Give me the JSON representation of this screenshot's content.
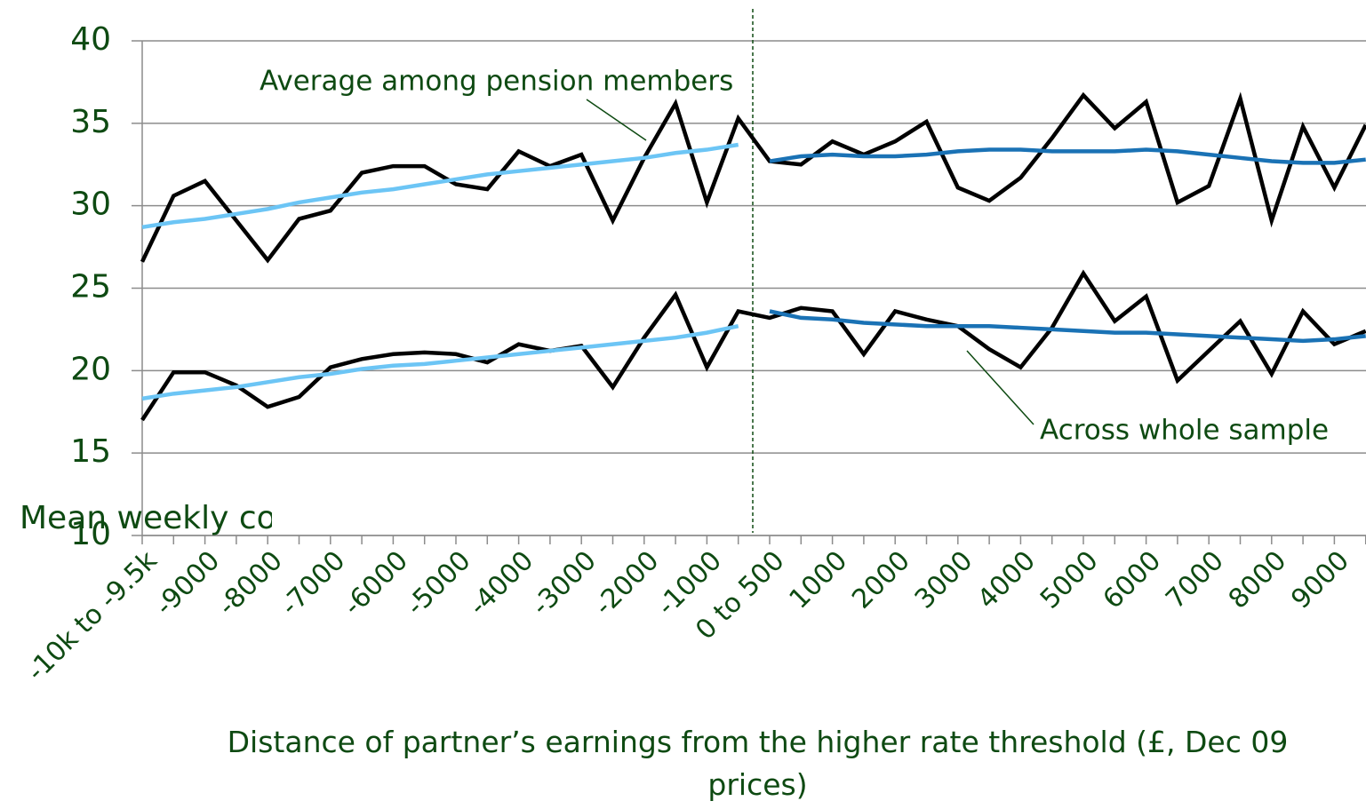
{
  "chart_data": {
    "type": "line",
    "y_label": "Mean weekly co",
    "x_label": "Distance of partner’s earnings from the higher rate threshold (£, Dec 09 prices)",
    "annotations": [
      "Average among pension members",
      "Across whole sample"
    ],
    "categories": [
      "-10k to -9.5k",
      null,
      "-9000",
      null,
      "-8000",
      null,
      "-7000",
      null,
      "-6000",
      null,
      "-5000",
      null,
      "-4000",
      null,
      "-3000",
      null,
      "-2000",
      null,
      "-1000",
      null,
      "0 to 500",
      null,
      "1000",
      null,
      "2000",
      null,
      "3000",
      null,
      "4000",
      null,
      "5000",
      null,
      "6000",
      null,
      "7000",
      null,
      "8000",
      null,
      "9000",
      null
    ],
    "series": [
      {
        "color": "#000000",
        "values": [
          26.6,
          30.6,
          31.5,
          29.1,
          26.7,
          29.2,
          29.7,
          32.0,
          32.4,
          32.4,
          31.3,
          31.0,
          33.3,
          32.4,
          33.1,
          29.1,
          32.9,
          36.2,
          30.2,
          35.3,
          32.7,
          32.5,
          33.9,
          33.1,
          33.9,
          35.1,
          31.1,
          30.3,
          31.7,
          34.1,
          36.7,
          34.7,
          36.3,
          30.2,
          31.2,
          36.5,
          29.1,
          34.8,
          31.1,
          34.9
        ]
      },
      {
        "color": "#6cc5f5",
        "values": [
          28.7,
          29.0,
          29.2,
          29.5,
          29.8,
          30.2,
          30.5,
          30.8,
          31.0,
          31.3,
          31.6,
          31.9,
          32.1,
          32.3,
          32.5,
          32.7,
          32.9,
          33.2,
          33.4,
          33.7,
          null,
          null,
          null,
          null,
          null,
          null,
          null,
          null,
          null,
          null,
          null,
          null,
          null,
          null,
          null,
          null,
          null,
          null,
          null,
          null
        ]
      },
      {
        "color": "#1a72b5",
        "values": [
          null,
          null,
          null,
          null,
          null,
          null,
          null,
          null,
          null,
          null,
          null,
          null,
          null,
          null,
          null,
          null,
          null,
          null,
          null,
          null,
          32.7,
          33.0,
          33.1,
          33.0,
          33.0,
          33.1,
          33.3,
          33.4,
          33.4,
          33.3,
          33.3,
          33.3,
          33.4,
          33.3,
          33.1,
          32.9,
          32.7,
          32.6,
          32.6,
          32.8
        ]
      },
      {
        "color": "#000000",
        "values": [
          17.0,
          19.9,
          19.9,
          19.1,
          17.8,
          18.4,
          20.2,
          20.7,
          21.0,
          21.1,
          21.0,
          20.5,
          21.6,
          21.2,
          21.5,
          19.0,
          22.0,
          24.6,
          20.2,
          23.6,
          23.2,
          23.8,
          23.6,
          21.0,
          23.6,
          23.1,
          22.7,
          21.3,
          20.2,
          22.6,
          25.9,
          23.0,
          24.5,
          19.4,
          21.2,
          23.0,
          19.8,
          23.6,
          21.6,
          22.4
        ]
      },
      {
        "color": "#6cc5f5",
        "values": [
          18.3,
          18.6,
          18.8,
          19.0,
          19.3,
          19.6,
          19.8,
          20.1,
          20.3,
          20.4,
          20.6,
          20.8,
          21.0,
          21.2,
          21.4,
          21.6,
          21.8,
          22.0,
          22.3,
          22.7,
          null,
          null,
          null,
          null,
          null,
          null,
          null,
          null,
          null,
          null,
          null,
          null,
          null,
          null,
          null,
          null,
          null,
          null,
          null,
          null
        ]
      },
      {
        "color": "#1a72b5",
        "values": [
          null,
          null,
          null,
          null,
          null,
          null,
          null,
          null,
          null,
          null,
          null,
          null,
          null,
          null,
          null,
          null,
          null,
          null,
          null,
          null,
          23.6,
          23.2,
          23.1,
          22.9,
          22.8,
          22.7,
          22.7,
          22.7,
          22.6,
          22.5,
          22.4,
          22.3,
          22.3,
          22.2,
          22.1,
          22.0,
          21.9,
          21.8,
          21.9,
          22.1
        ]
      }
    ],
    "ylim": [
      10,
      40
    ],
    "yticks": [
      10,
      15,
      20,
      25,
      30,
      35,
      40
    ],
    "grid": true
  }
}
